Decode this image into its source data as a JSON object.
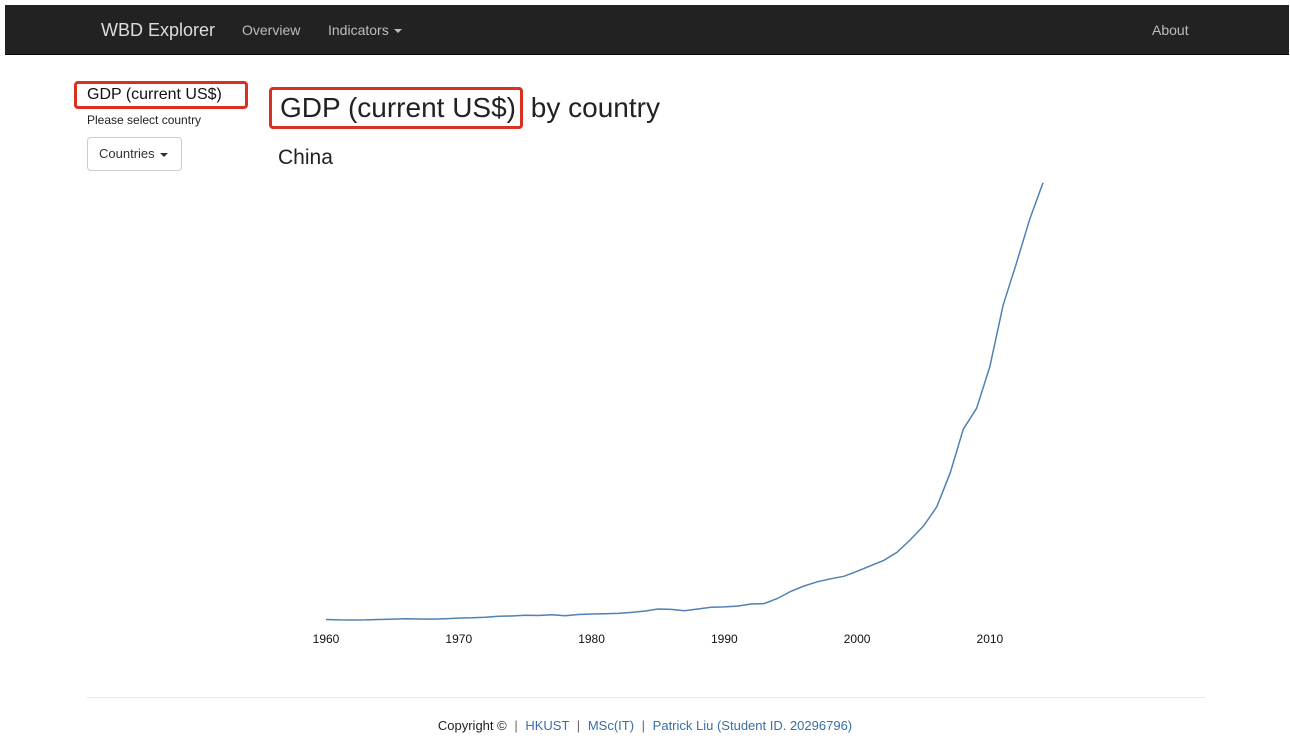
{
  "navbar": {
    "brand": "WBD Explorer",
    "overview": "Overview",
    "indicators": "Indicators",
    "about": "About"
  },
  "sidebar": {
    "indicator_title": "GDP (current US$)",
    "hint": "Please select country",
    "dropdown_label": "Countries"
  },
  "main": {
    "title_highlight": "GDP (current US$)",
    "title_rest": " by country",
    "country": "China"
  },
  "footer": {
    "copyright": "Copyright ©",
    "link1": "HKUST",
    "link2": "MSc(IT)",
    "link3": "Patrick Liu (Student ID. 20296796)",
    "separator": "|"
  },
  "colors": {
    "line": "#4f81b3",
    "highlight": "#d9301f"
  },
  "chart_data": {
    "type": "line",
    "title": "",
    "xlabel": "",
    "ylabel": "",
    "x_ticks": [
      1960,
      1970,
      1980,
      1990,
      2000,
      2010
    ],
    "xlim": [
      1960,
      2014
    ],
    "ylim": [
      0,
      10.5
    ],
    "series": [
      {
        "values": [
          [
            1960,
            0.06
          ],
          [
            1961,
            0.05
          ],
          [
            1962,
            0.047
          ],
          [
            1963,
            0.051
          ],
          [
            1964,
            0.059
          ],
          [
            1965,
            0.07
          ],
          [
            1966,
            0.076
          ],
          [
            1967,
            0.072
          ],
          [
            1968,
            0.07
          ],
          [
            1969,
            0.079
          ],
          [
            1970,
            0.092
          ],
          [
            1971,
            0.1
          ],
          [
            1972,
            0.114
          ],
          [
            1973,
            0.139
          ],
          [
            1974,
            0.144
          ],
          [
            1975,
            0.163
          ],
          [
            1976,
            0.154
          ],
          [
            1977,
            0.175
          ],
          [
            1978,
            0.149
          ],
          [
            1979,
            0.178
          ],
          [
            1980,
            0.191
          ],
          [
            1981,
            0.196
          ],
          [
            1982,
            0.205
          ],
          [
            1983,
            0.23
          ],
          [
            1984,
            0.26
          ],
          [
            1985,
            0.31
          ],
          [
            1986,
            0.3
          ],
          [
            1987,
            0.27
          ],
          [
            1988,
            0.31
          ],
          [
            1989,
            0.35
          ],
          [
            1990,
            0.36
          ],
          [
            1991,
            0.38
          ],
          [
            1992,
            0.43
          ],
          [
            1993,
            0.44
          ],
          [
            1994,
            0.56
          ],
          [
            1995,
            0.73
          ],
          [
            1996,
            0.86
          ],
          [
            1997,
            0.96
          ],
          [
            1998,
            1.03
          ],
          [
            1999,
            1.09
          ],
          [
            2000,
            1.21
          ],
          [
            2001,
            1.34
          ],
          [
            2002,
            1.47
          ],
          [
            2003,
            1.66
          ],
          [
            2004,
            1.96
          ],
          [
            2005,
            2.29
          ],
          [
            2006,
            2.75
          ],
          [
            2007,
            3.55
          ],
          [
            2008,
            4.6
          ],
          [
            2009,
            5.1
          ],
          [
            2010,
            6.1
          ],
          [
            2011,
            7.57
          ],
          [
            2012,
            8.56
          ],
          [
            2013,
            9.61
          ],
          [
            2014,
            10.48
          ]
        ]
      }
    ]
  }
}
